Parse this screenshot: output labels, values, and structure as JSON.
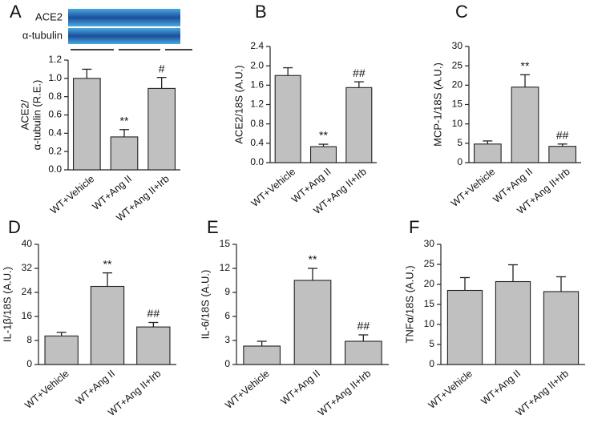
{
  "chart_data": [
    {
      "type": "bar",
      "panel_label": "A",
      "ylabel": [
        "ACE2/",
        "α-tubulin (R.E.)"
      ],
      "blot_labels": [
        "ACE2",
        "α-tubulin"
      ],
      "categories": [
        "WT+Vehicle",
        "WT+Ang II",
        "WT+Ang II+Irb"
      ],
      "values": [
        1.0,
        0.36,
        0.89
      ],
      "errors": [
        0.1,
        0.08,
        0.12
      ],
      "annotations": [
        null,
        "**",
        "#"
      ],
      "color": "#c0c0c0",
      "ylim": [
        0,
        1.2
      ],
      "yticks": [
        {
          "value": 0,
          "label": "0.0"
        },
        0.2,
        0.4,
        0.6,
        0.8,
        {
          "value": 1,
          "label": "1.0"
        },
        1.2
      ]
    },
    {
      "type": "bar",
      "panel_label": "B",
      "ylabel": [
        "ACE2/18S (A.U.)"
      ],
      "categories": [
        "WT+Vehicle",
        "WT+Ang II",
        "WT+Ang II+Irb"
      ],
      "values": [
        1.8,
        0.33,
        1.55
      ],
      "errors": [
        0.16,
        0.05,
        0.12
      ],
      "annotations": [
        null,
        "**",
        "##"
      ],
      "color": "#c0c0c0",
      "ylim": [
        0,
        2.4
      ],
      "yticks": [
        {
          "value": 0,
          "label": "0.0"
        },
        0.4,
        0.8,
        1.2,
        1.6,
        {
          "value": 2,
          "label": "2.0"
        },
        2.4
      ]
    },
    {
      "type": "bar",
      "panel_label": "C",
      "ylabel": [
        "MCP-1/18S (A.U.)"
      ],
      "categories": [
        "WT+Vehicle",
        "WT+Ang II",
        "WT+Ang II+Irb"
      ],
      "values": [
        4.8,
        19.5,
        4.2
      ],
      "errors": [
        0.8,
        3.2,
        0.6
      ],
      "annotations": [
        null,
        "**",
        "##"
      ],
      "color": "#c0c0c0",
      "ylim": [
        0,
        30
      ],
      "yticks": [
        0,
        5,
        10,
        15,
        20,
        25,
        30
      ]
    },
    {
      "type": "bar",
      "panel_label": "D",
      "ylabel": [
        "IL-1β/18S (A.U.)"
      ],
      "categories": [
        "WT+Vehicle",
        "WT+Ang II",
        "WT+Ang II+Irb"
      ],
      "values": [
        9.5,
        26,
        12.5
      ],
      "errors": [
        1.2,
        4.5,
        1.5
      ],
      "annotations": [
        null,
        "**",
        "##"
      ],
      "color": "#c0c0c0",
      "ylim": [
        0,
        40
      ],
      "yticks": [
        0,
        8,
        16,
        24,
        32,
        40
      ]
    },
    {
      "type": "bar",
      "panel_label": "E",
      "ylabel": [
        "IL-6/18S (A.U.)"
      ],
      "categories": [
        "WT+Vehicle",
        "WT+Ang II",
        "WT+Ang II+Irb"
      ],
      "values": [
        2.3,
        10.5,
        2.9
      ],
      "errors": [
        0.6,
        1.5,
        0.8
      ],
      "annotations": [
        null,
        "**",
        "##"
      ],
      "color": "#c0c0c0",
      "ylim": [
        0,
        15
      ],
      "yticks": [
        0,
        3,
        6,
        9,
        12,
        15
      ]
    },
    {
      "type": "bar",
      "panel_label": "F",
      "ylabel": [
        "TNFα/18S (A.U.)"
      ],
      "categories": [
        "WT+Vehicle",
        "WT+Ang II",
        "WT+Ang II+Irb"
      ],
      "values": [
        18.5,
        20.7,
        18.2
      ],
      "errors": [
        3.2,
        4.2,
        3.7
      ],
      "annotations": [
        null,
        null,
        null
      ],
      "color": "#c0c0c0",
      "ylim": [
        0,
        30
      ],
      "yticks": [
        0,
        5,
        10,
        15,
        20,
        25,
        30
      ]
    }
  ]
}
